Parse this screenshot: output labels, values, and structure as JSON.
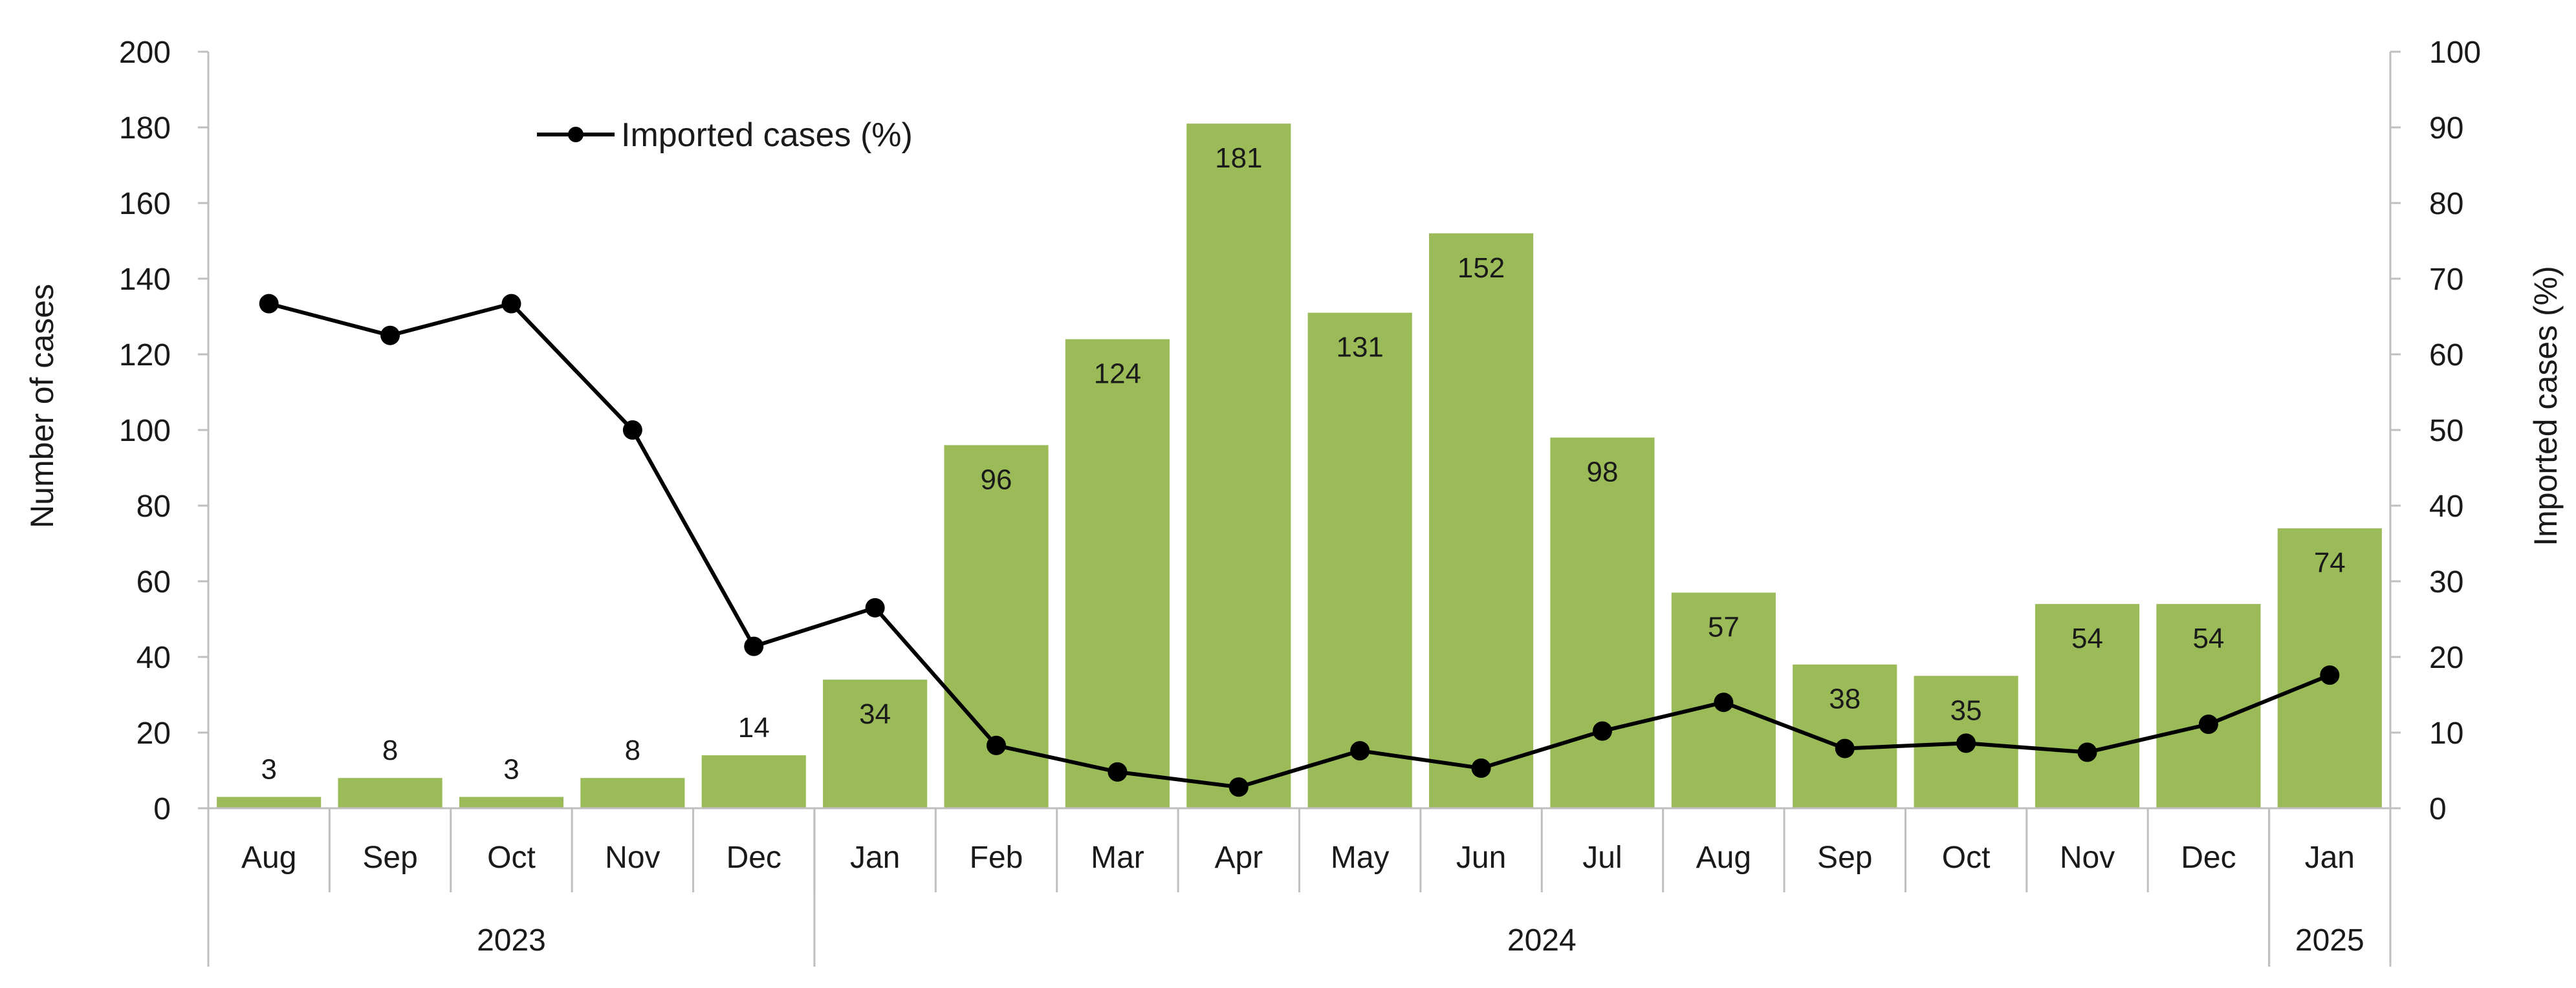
{
  "chart_data": {
    "type": "bar",
    "months": [
      "Aug",
      "Sep",
      "Oct",
      "Nov",
      "Dec",
      "Jan",
      "Feb",
      "Mar",
      "Apr",
      "May",
      "Jun",
      "Jul",
      "Aug",
      "Sep",
      "Oct",
      "Nov",
      "Dec",
      "Jan"
    ],
    "year_groups": [
      {
        "label": "2023",
        "count": 5
      },
      {
        "label": "2024",
        "count": 12
      },
      {
        "label": "2025",
        "count": 1
      }
    ],
    "series": [
      {
        "type": "bar",
        "axis": "left",
        "values": [
          3,
          8,
          3,
          8,
          14,
          34,
          96,
          124,
          181,
          131,
          152,
          98,
          57,
          38,
          35,
          54,
          54,
          74
        ],
        "color": "#9bbb59"
      },
      {
        "type": "line",
        "name": "Imported cases (%)",
        "axis": "right",
        "values": [
          66.7,
          62.5,
          66.7,
          50.0,
          21.4,
          26.5,
          8.3,
          4.8,
          2.8,
          7.6,
          5.3,
          10.2,
          14.0,
          7.9,
          8.6,
          7.4,
          11.1,
          17.6
        ],
        "color": "#000000"
      }
    ],
    "ylabel": "Number of cases",
    "y2label": "Imported cases (%)",
    "ylim": [
      0,
      200
    ],
    "y2lim": [
      0,
      100
    ],
    "yticks": [
      0,
      20,
      40,
      60,
      80,
      100,
      120,
      140,
      160,
      180,
      200
    ],
    "y2ticks": [
      0,
      10,
      20,
      30,
      40,
      50,
      60,
      70,
      80,
      90,
      100
    ],
    "legend": {
      "position": "top-left",
      "label": "Imported cases (%)"
    },
    "grid": false
  }
}
